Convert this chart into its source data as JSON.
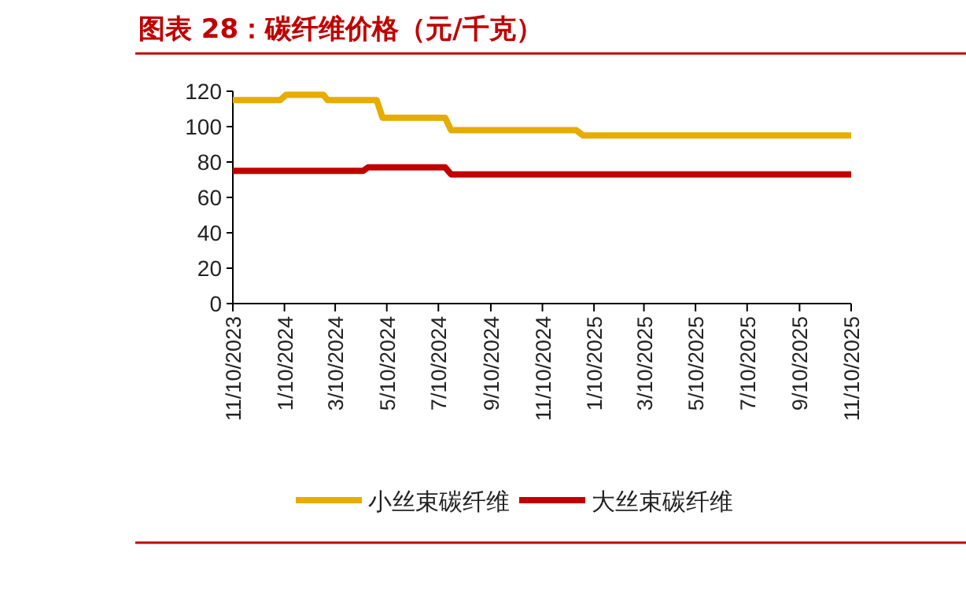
{
  "chart_data": {
    "type": "line",
    "title": "图表 28：碳纤维价格（元/千克）",
    "series": [
      {
        "name": "小丝束碳纤维",
        "color": "#e6ac00",
        "x": [
          "2023-11-10",
          "2024-01-05",
          "2024-01-12",
          "2024-02-25",
          "2024-03-01",
          "2024-04-28",
          "2024-05-05",
          "2024-07-18",
          "2024-07-25",
          "2024-12-20",
          "2024-12-28",
          "2025-11-10"
        ],
        "values": [
          115,
          115,
          118,
          118,
          115,
          115,
          105,
          105,
          98,
          98,
          95,
          95
        ]
      },
      {
        "name": "大丝束碳纤维",
        "color": "#c00000",
        "x": [
          "2023-11-10",
          "2024-04-12",
          "2024-04-18",
          "2024-07-18",
          "2024-07-25",
          "2025-11-10"
        ],
        "values": [
          75,
          75,
          77,
          77,
          73,
          73
        ]
      }
    ],
    "xlim": [
      "2023-11-10",
      "2025-11-10"
    ],
    "xticks": [
      {
        "value": "2023-11-10",
        "label": "11/10/2023"
      },
      {
        "value": "2024-01-10",
        "label": "1/10/2024"
      },
      {
        "value": "2024-03-10",
        "label": "3/10/2024"
      },
      {
        "value": "2024-05-10",
        "label": "5/10/2024"
      },
      {
        "value": "2024-07-10",
        "label": "7/10/2024"
      },
      {
        "value": "2024-09-10",
        "label": "9/10/2024"
      },
      {
        "value": "2024-11-10",
        "label": "11/10/2024"
      },
      {
        "value": "2025-01-10",
        "label": "1/10/2025"
      },
      {
        "value": "2025-03-10",
        "label": "3/10/2025"
      },
      {
        "value": "2025-05-10",
        "label": "5/10/2025"
      },
      {
        "value": "2025-07-10",
        "label": "7/10/2025"
      },
      {
        "value": "2025-09-10",
        "label": "9/10/2025"
      },
      {
        "value": "2025-11-10",
        "label": "11/10/2025"
      }
    ],
    "ylim": [
      0,
      120
    ],
    "yticks": [
      0,
      20,
      40,
      60,
      80,
      100,
      120
    ],
    "grid": false,
    "legend": "bottom",
    "marker": "none",
    "line_style": "solid"
  }
}
